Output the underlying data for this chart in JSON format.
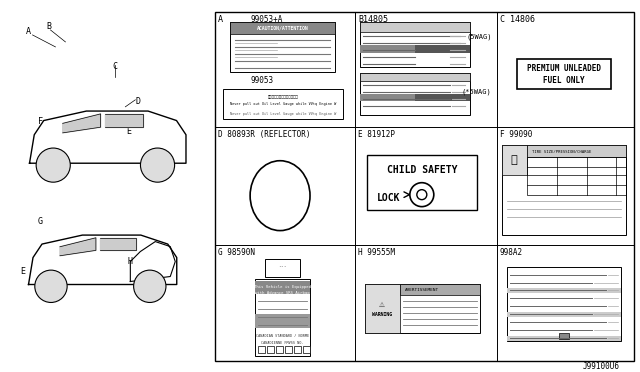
{
  "bg_color": "#ffffff",
  "border_color": "#000000",
  "line_color": "#000000",
  "gray_light": "#cccccc",
  "gray_medium": "#999999",
  "gray_dark": "#555555",
  "title_code": "J99100U6",
  "panel_A_label": "A",
  "panel_A_code1": "99053+A",
  "panel_A_code2": "99053",
  "panel_B_label": "B14805",
  "panel_B_tag1": "(5WAG)",
  "panel_B_tag2": "(*5WAG)",
  "panel_C_label": "C 14806",
  "panel_C_text1": "PREMIUM UNLEADED",
  "panel_C_text2": "FUEL ONLY",
  "panel_D_label": "D 80893R (REFLECTOR)",
  "panel_E_label": "E 81912P",
  "panel_E_text1": "CHILD SAFETY",
  "panel_E_text2": "LOCK",
  "panel_F_label": "F 99090",
  "panel_G_label": "G 98590N",
  "panel_H_label": "H 99555M",
  "panel_I_label": "998A2",
  "car_labels_top": [
    "A",
    "B",
    "C",
    "D",
    "E",
    "F"
  ],
  "car_labels_bot": [
    "G",
    "H",
    "E"
  ]
}
